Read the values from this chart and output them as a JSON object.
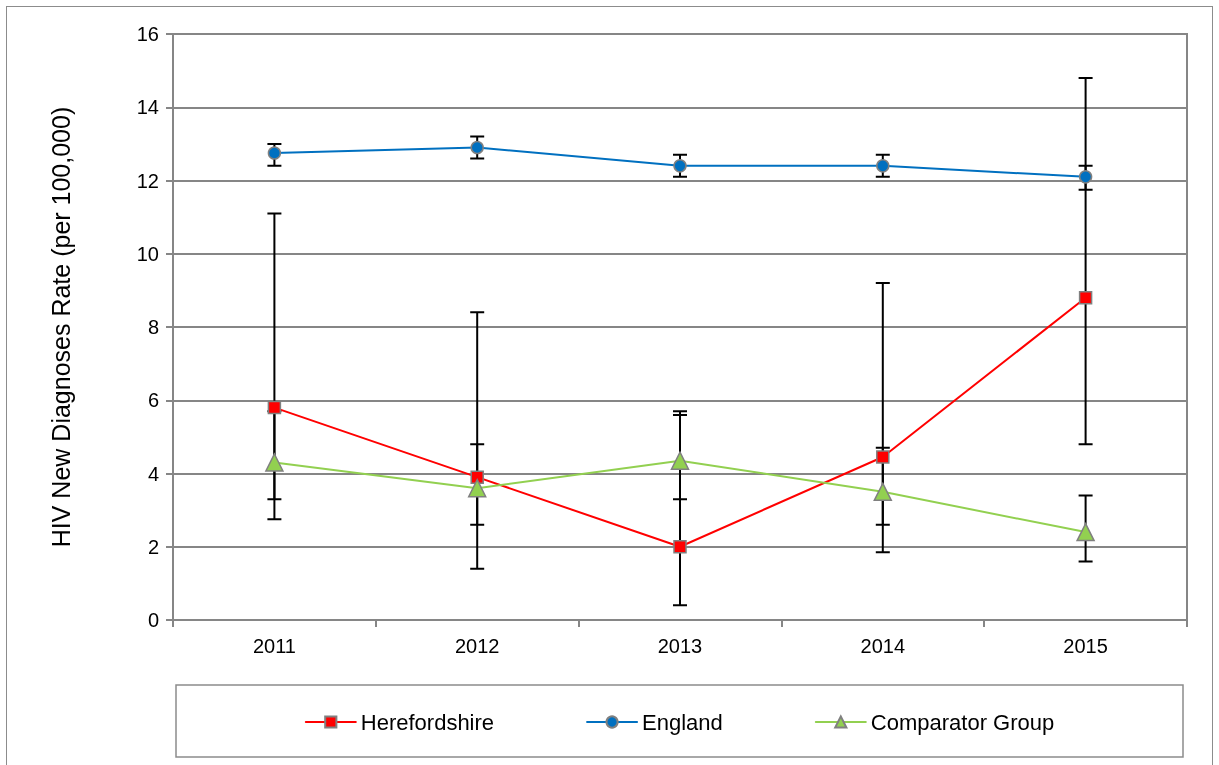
{
  "chart_data": {
    "type": "line",
    "ylabel": "HIV New Diagnoses Rate (per 100,000)",
    "categories": [
      "2011",
      "2012",
      "2013",
      "2014",
      "2015"
    ],
    "series": [
      {
        "name": "Herefordshire",
        "color": "#ff0000",
        "marker": "square",
        "values": [
          5.8,
          3.9,
          2.0,
          4.45,
          8.8
        ],
        "errors": [
          [
            2.75,
            11.1
          ],
          [
            1.4,
            8.4
          ],
          [
            0.4,
            5.7
          ],
          [
            1.85,
            9.2
          ],
          [
            4.8,
            14.8
          ]
        ]
      },
      {
        "name": "England",
        "color": "#0070c0",
        "marker": "circle",
        "values": [
          12.75,
          12.9,
          12.4,
          12.4,
          12.1
        ],
        "errors": [
          [
            12.4,
            13.0
          ],
          [
            12.6,
            13.2
          ],
          [
            12.1,
            12.7
          ],
          [
            12.1,
            12.7
          ],
          [
            11.75,
            12.4
          ]
        ]
      },
      {
        "name": "Comparator Group",
        "color": "#92d050",
        "marker": "triangle",
        "values": [
          4.3,
          3.6,
          4.35,
          3.5,
          2.4
        ],
        "errors": [
          [
            3.3,
            5.7
          ],
          [
            2.6,
            4.8
          ],
          [
            3.3,
            5.6
          ],
          [
            2.6,
            4.7
          ],
          [
            1.6,
            3.4
          ]
        ]
      }
    ],
    "ylim": [
      0,
      16
    ],
    "yticks": [
      0,
      2,
      4,
      6,
      8,
      10,
      12,
      14,
      16
    ],
    "grid": "y",
    "legend": "bottom",
    "line_style": "solid"
  }
}
